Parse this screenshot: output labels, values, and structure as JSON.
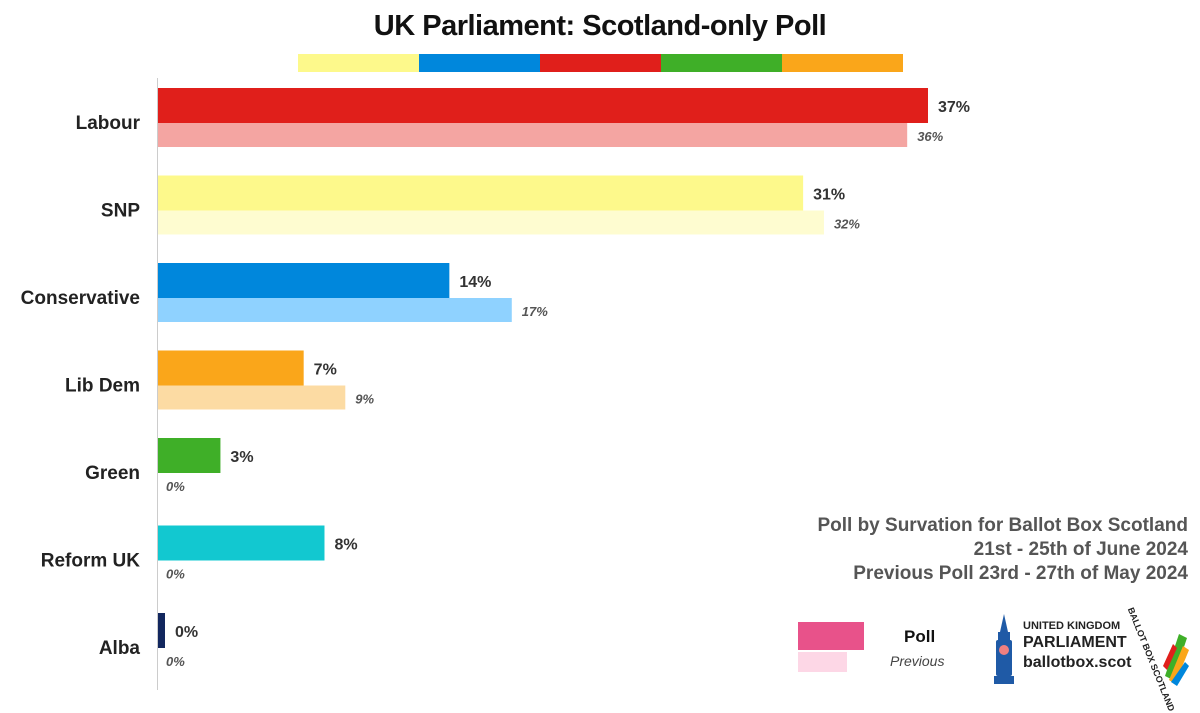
{
  "chart_data": {
    "type": "bar",
    "orientation": "horizontal",
    "title": "UK Parliament: Scotland-only Poll",
    "categories": [
      "Labour",
      "SNP",
      "Conservative",
      "Lib Dem",
      "Green",
      "Reform UK",
      "Alba"
    ],
    "series": [
      {
        "name": "Poll",
        "values": [
          37,
          31,
          14,
          7,
          3,
          8,
          0
        ],
        "labels": [
          "37%",
          "31%",
          "14%",
          "7%",
          "3%",
          "8%",
          "0%"
        ],
        "colors": [
          "#e01f1b",
          "#fdf98b",
          "#0087dc",
          "#faa61a",
          "#3faf28",
          "#12c8d0",
          "#12275e"
        ]
      },
      {
        "name": "Previous",
        "values": [
          36,
          32,
          17,
          9,
          0,
          0,
          0
        ],
        "labels": [
          "36%",
          "32%",
          "17%",
          "9%",
          "0%",
          "0%",
          "0%"
        ],
        "colors": [
          "#f4a5a2",
          "#fefcd0",
          "#8fd2ff",
          "#fcdba3",
          "#bfe4b6",
          "#a9ebee",
          "#a8b3cc"
        ]
      }
    ],
    "xlim": [
      0,
      37
    ],
    "grid": false,
    "legend": "bottom-right",
    "strip_colors": [
      "#fdf98b",
      "#0087dc",
      "#e01f1b",
      "#3faf28",
      "#faa61a"
    ]
  },
  "source": {
    "line1": "Poll by Survation for Ballot Box Scotland",
    "line2": "21st - 25th of June 2024",
    "line3": "Previous Poll 23rd - 27th of May 2024"
  },
  "legend": {
    "poll_label": "Poll",
    "previous_label": "Previous",
    "poll_color": "#e8528a",
    "previous_color": "#fdd7e6"
  },
  "branding": {
    "small": "UNITED KINGDOM",
    "big": "PARLIAMENT",
    "url": "ballotbox.scot",
    "ring": "BALLOT BOX SCOTLAND",
    "icon": "big-ben-icon"
  }
}
